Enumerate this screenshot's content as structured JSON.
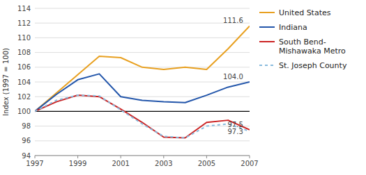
{
  "chart_data": {
    "type": "line",
    "x": [
      1997,
      1998,
      1999,
      2000,
      2001,
      2002,
      2003,
      2004,
      2005,
      2006,
      2007
    ],
    "series": [
      {
        "name": "United States",
        "color": "#E8A020",
        "line_style": "solid",
        "values": [
          100.0,
          102.5,
          105.0,
          107.5,
          107.3,
          106.0,
          105.7,
          106.0,
          105.7,
          108.5,
          111.6
        ]
      },
      {
        "name": "Indiana",
        "color": "#2255AA",
        "line_style": "solid",
        "values": [
          100.0,
          102.3,
          104.3,
          105.1,
          102.0,
          101.5,
          101.3,
          101.2,
          102.2,
          103.3,
          104.0
        ]
      },
      {
        "name": "South Bend-\nMishawaka Metro",
        "color": "#CC2222",
        "line_style": "solid",
        "values": [
          100.0,
          101.3,
          102.2,
          102.0,
          100.3,
          98.5,
          96.5,
          96.4,
          98.5,
          98.8,
          97.5
        ]
      },
      {
        "name": "St. Joseph County",
        "color": "#88BBDD",
        "line_style": "dashed",
        "values": [
          100.0,
          101.5,
          102.2,
          102.1,
          100.2,
          98.3,
          96.6,
          96.4,
          98.0,
          98.3,
          97.3
        ]
      }
    ],
    "xlim": [
      1997,
      2007
    ],
    "xticks": [
      1997,
      1999,
      2001,
      2003,
      2005,
      2007
    ],
    "ylim": [
      94,
      114
    ],
    "yticks": [
      94,
      96,
      98,
      100,
      102,
      104,
      106,
      108,
      110,
      112,
      114
    ],
    "y_label": "Index (1997 = 100)",
    "reference_line": {
      "y": 100.0,
      "color": "#000000"
    },
    "annotations": [
      {
        "text": "111.6",
        "x": 2006.7,
        "y": 111.9
      },
      {
        "text": "104.0",
        "x": 2006.7,
        "y": 104.3
      },
      {
        "text": "97.5",
        "x": 2006.7,
        "y": 97.8
      },
      {
        "text": "97.3",
        "x": 2006.7,
        "y": 96.85
      }
    ],
    "grid": true,
    "legend": "right"
  }
}
